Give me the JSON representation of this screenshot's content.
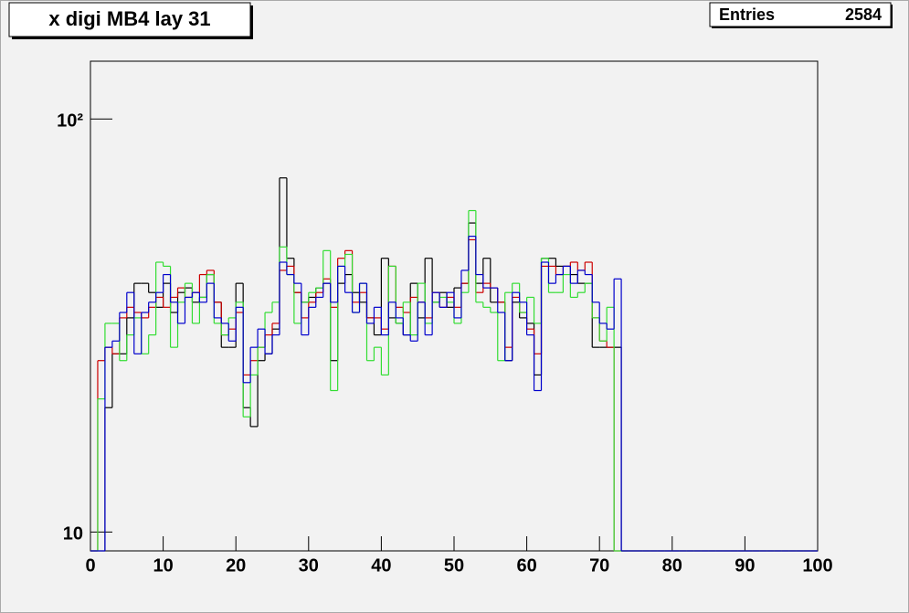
{
  "chart_data": {
    "type": "step-histogram",
    "title": "x digi MB4 lay 31",
    "stats": {
      "label": "Entries",
      "value": 2584
    },
    "log_y": true,
    "bins": [
      0,
      1,
      2,
      3,
      4,
      5,
      6,
      7,
      8,
      9,
      10,
      11,
      12,
      13,
      14,
      15,
      16,
      17,
      18,
      19,
      20,
      21,
      22,
      23,
      24,
      25,
      26,
      27,
      28,
      29,
      30,
      31,
      32,
      33,
      34,
      35,
      36,
      37,
      38,
      39,
      40,
      41,
      42,
      43,
      44,
      45,
      46,
      47,
      48,
      49,
      50,
      51,
      52,
      53,
      54,
      55,
      56,
      57,
      58,
      59,
      60,
      61,
      62,
      63,
      64,
      65,
      66,
      67,
      68,
      69,
      70,
      71,
      72,
      73,
      74,
      75,
      76,
      77,
      78,
      79,
      80,
      81,
      82,
      83,
      84,
      85,
      86,
      87,
      88,
      89,
      90,
      91,
      92,
      93,
      94,
      95,
      96,
      97,
      98,
      99,
      100
    ],
    "xlim": [
      0,
      100
    ],
    "xticks": [
      0,
      10,
      20,
      30,
      40,
      50,
      60,
      70,
      80,
      90,
      100
    ],
    "ylim": [
      9,
      138
    ],
    "yticks": [
      10,
      {
        "value": 100,
        "label": "10²"
      }
    ],
    "series": [
      {
        "color": "#000000",
        "values": [
          0,
          0,
          20,
          27,
          27,
          33,
          40,
          40,
          38,
          35,
          40,
          34,
          38,
          39,
          36,
          37,
          42,
          36,
          28,
          28,
          40,
          20,
          18,
          26,
          27,
          31,
          72,
          46,
          38,
          36,
          37,
          39,
          40,
          26,
          40,
          42,
          38,
          36,
          33,
          30,
          46,
          33,
          32,
          30,
          40,
          33,
          46,
          36,
          38,
          35,
          39,
          40,
          56,
          40,
          46,
          36,
          36,
          26,
          36,
          33,
          32,
          24,
          46,
          46,
          44,
          44,
          42,
          40,
          40,
          28,
          28,
          28,
          28,
          0,
          0,
          0,
          0,
          0,
          0,
          0,
          0,
          0,
          0,
          0,
          0,
          0,
          0,
          0,
          0,
          0,
          0,
          0,
          0,
          0,
          0,
          0,
          0,
          0,
          0,
          0
        ]
      },
      {
        "color": "#cc0000",
        "values": [
          0,
          26,
          28,
          27,
          33,
          35,
          34,
          33,
          35,
          37,
          35,
          37,
          39,
          37,
          38,
          42,
          43,
          36,
          30,
          31,
          34,
          24,
          26,
          28,
          30,
          32,
          43,
          44,
          38,
          33,
          36,
          38,
          41,
          35,
          46,
          48,
          36,
          38,
          33,
          33,
          31,
          44,
          35,
          34,
          37,
          36,
          33,
          38,
          35,
          37,
          35,
          40,
          51,
          38,
          40,
          39,
          36,
          28,
          37,
          34,
          31,
          27,
          44,
          44,
          42,
          44,
          45,
          43,
          45,
          33,
          29,
          28,
          0,
          0,
          0,
          0,
          0,
          0,
          0,
          0,
          0,
          0,
          0,
          0,
          0,
          0,
          0,
          0,
          0,
          0,
          0,
          0,
          0,
          0,
          0,
          0,
          0,
          0,
          0,
          0
        ]
      },
      {
        "color": "#33dd33",
        "values": [
          0,
          21,
          32,
          32,
          26,
          30,
          33,
          27,
          30,
          45,
          44,
          28,
          36,
          40,
          32,
          37,
          42,
          32,
          30,
          33,
          36,
          19,
          24,
          28,
          34,
          36,
          49,
          42,
          32,
          36,
          38,
          39,
          48,
          22,
          44,
          47,
          34,
          40,
          26,
          28,
          24,
          44,
          32,
          36,
          30,
          40,
          32,
          36,
          37,
          36,
          32,
          38,
          60,
          36,
          35,
          34,
          26,
          38,
          40,
          34,
          37,
          32,
          46,
          38,
          38,
          42,
          37,
          38,
          40,
          33,
          29,
          35,
          0,
          0,
          0,
          0,
          0,
          0,
          0,
          0,
          0,
          0,
          0,
          0,
          0,
          0,
          0,
          0,
          0,
          0,
          0,
          0,
          0,
          0,
          0,
          0,
          0,
          0,
          0,
          0
        ]
      },
      {
        "color": "#0000cc",
        "values": [
          0,
          0,
          28,
          29,
          34,
          38,
          27,
          34,
          36,
          38,
          42,
          36,
          32,
          37,
          38,
          36,
          40,
          33,
          32,
          29,
          35,
          23,
          28,
          31,
          27,
          30,
          45,
          42,
          40,
          30,
          35,
          37,
          40,
          36,
          44,
          38,
          34,
          40,
          32,
          35,
          30,
          36,
          33,
          30,
          29,
          36,
          30,
          38,
          35,
          38,
          33,
          43,
          52,
          42,
          39,
          39,
          34,
          26,
          38,
          36,
          30,
          22,
          45,
          40,
          42,
          44,
          40,
          43,
          42,
          36,
          32,
          31,
          41,
          0,
          0,
          0,
          0,
          0,
          0,
          0,
          0,
          0,
          0,
          0,
          0,
          0,
          0,
          0,
          0,
          0,
          0,
          0,
          0,
          0,
          0,
          0,
          0,
          0,
          0,
          0
        ]
      }
    ]
  }
}
